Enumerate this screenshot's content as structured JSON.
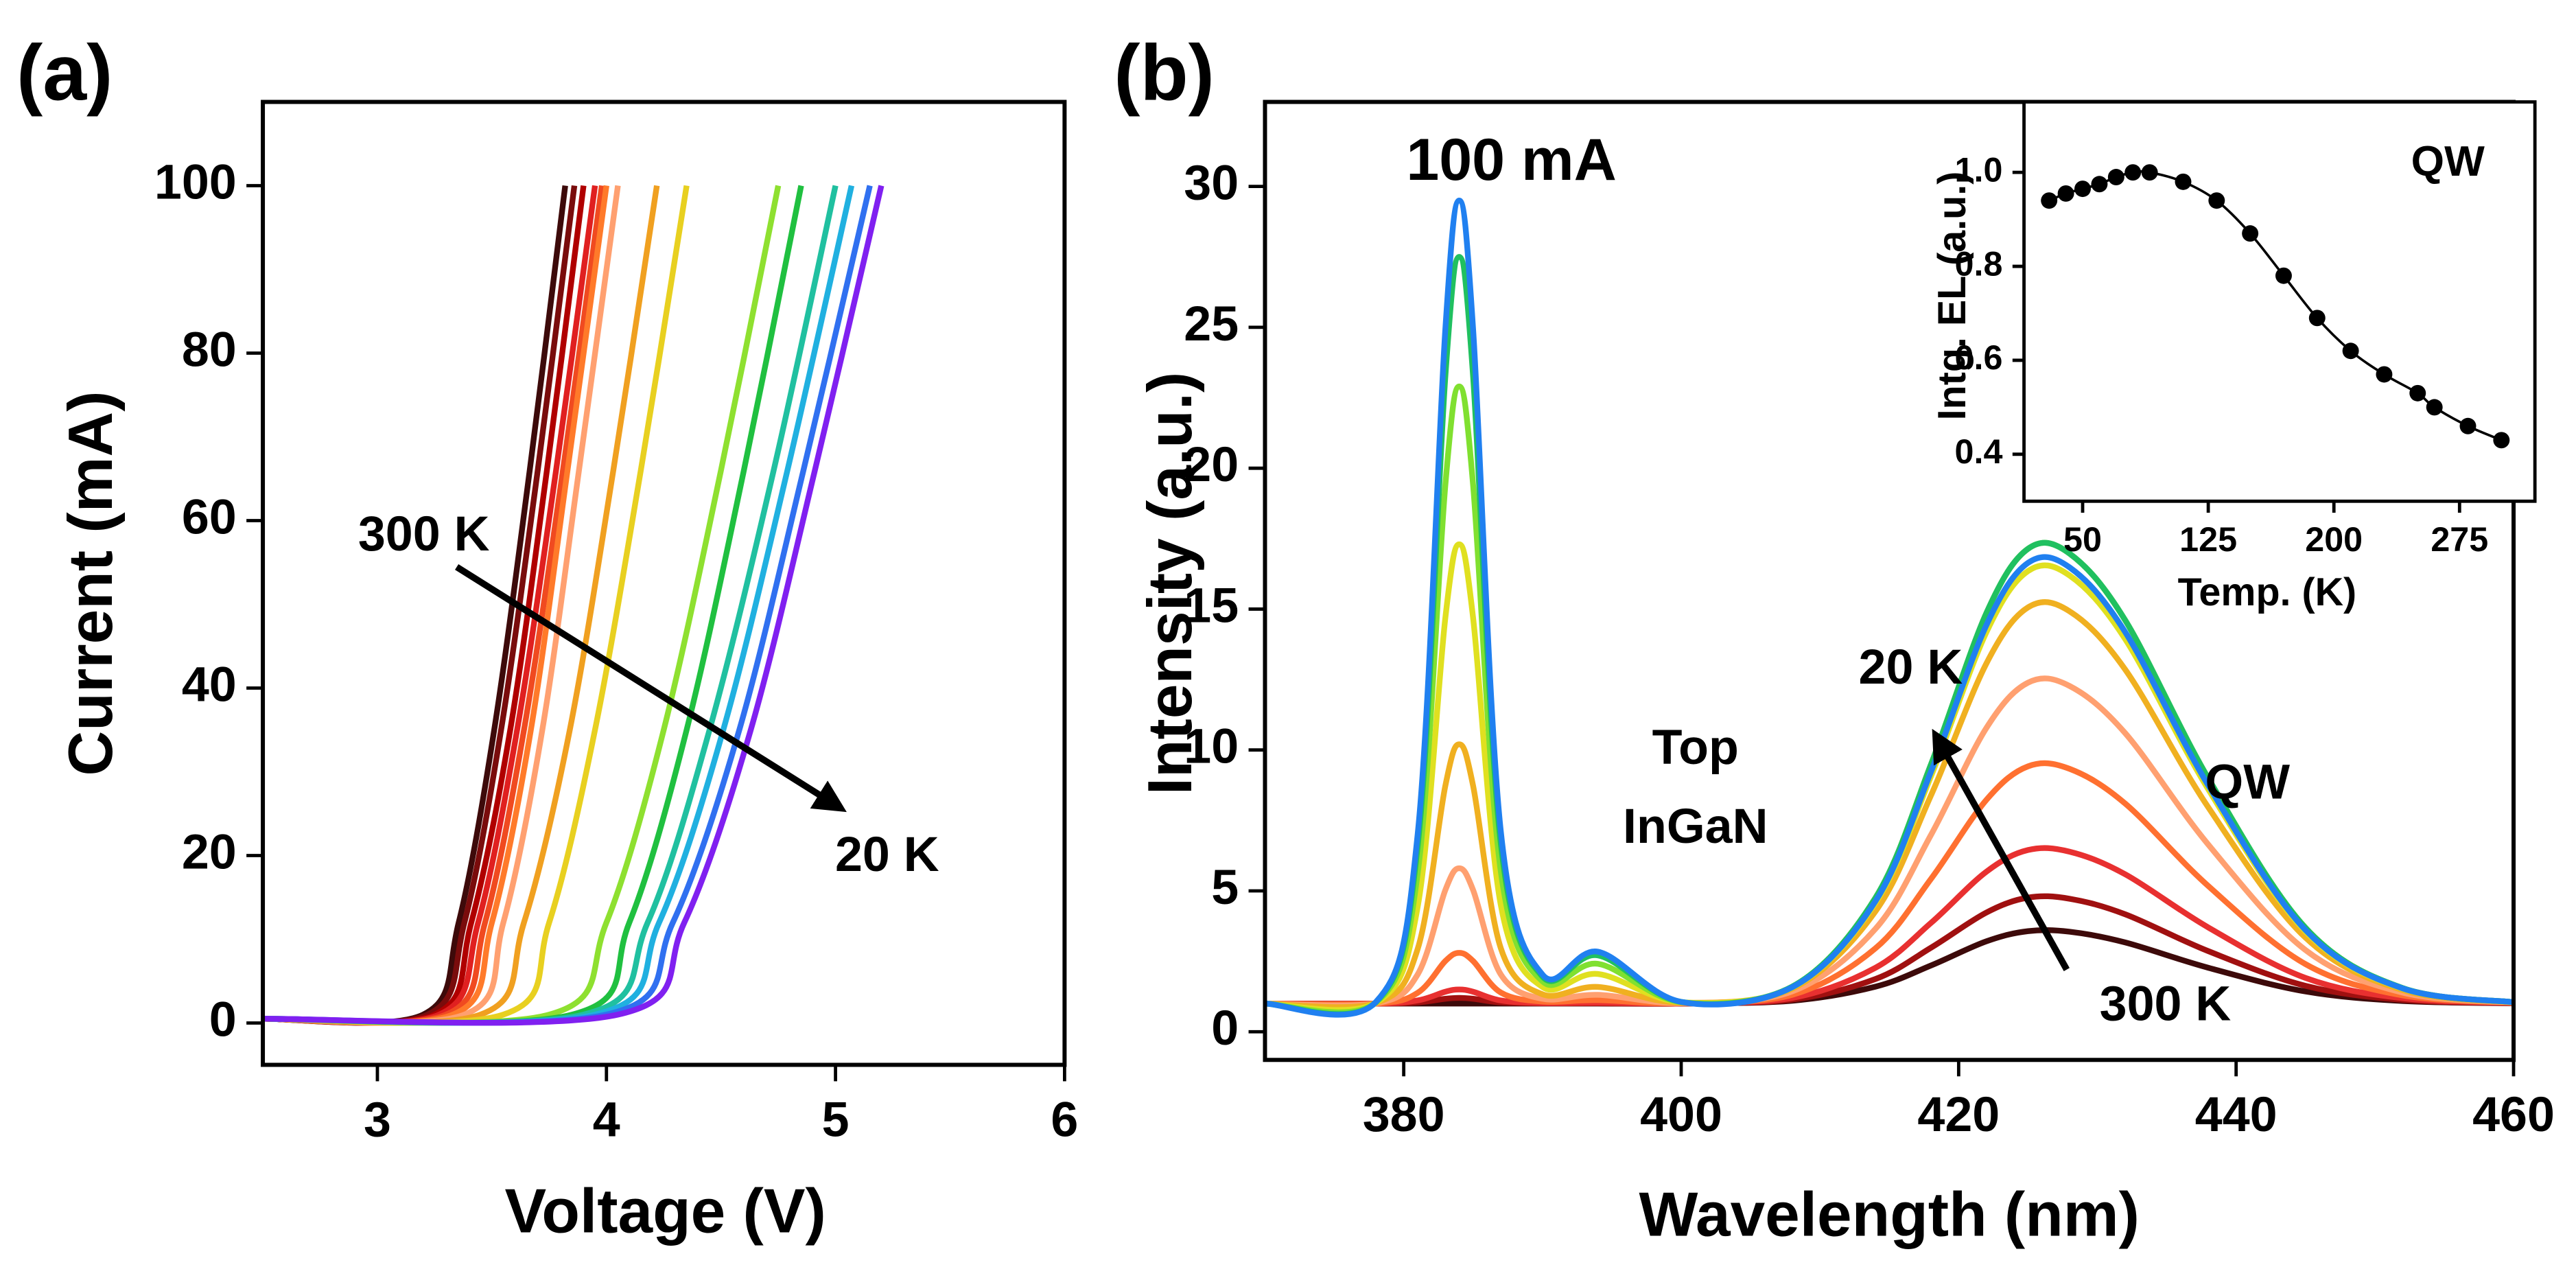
{
  "chart_data": [
    {
      "type": "line",
      "panel": "(a)",
      "x_label": "Voltage (V)",
      "y_label": "Current (mA)",
      "xlim": [
        2.5,
        6
      ],
      "xticks": [
        3,
        4,
        5,
        6
      ],
      "ylim": [
        -5,
        110
      ],
      "yticks": [
        0,
        20,
        40,
        60,
        80,
        100
      ],
      "annotations": [
        "300 K",
        "20 K"
      ],
      "series": [
        {
          "color": "#3d0a0a",
          "x": [
            2.5,
            3.2,
            3.355,
            3.51,
            3.665,
            3.82
          ],
          "values": [
            0.5,
            1,
            12,
            35,
            66,
            100
          ]
        },
        {
          "color": "#7a0c0c",
          "x": [
            2.5,
            3.22,
            3.38,
            3.54,
            3.7,
            3.86
          ],
          "values": [
            0.5,
            1,
            12,
            35,
            66,
            100
          ]
        },
        {
          "color": "#b00000",
          "x": [
            2.5,
            3.25,
            3.41,
            3.58,
            3.74,
            3.9
          ],
          "values": [
            0.5,
            1,
            12,
            35,
            66,
            100
          ]
        },
        {
          "color": "#e02020",
          "x": [
            2.5,
            3.27,
            3.44,
            3.61,
            3.78,
            3.95
          ],
          "values": [
            0.5,
            1,
            12,
            35,
            66,
            100
          ]
        },
        {
          "color": "#f04a20",
          "x": [
            2.5,
            3.3,
            3.47,
            3.64,
            3.81,
            3.98
          ],
          "values": [
            0.5,
            1,
            12,
            35,
            66,
            100
          ]
        },
        {
          "color": "#ff7a2a",
          "x": [
            2.5,
            3.33,
            3.5,
            3.67,
            3.83,
            4.0
          ],
          "values": [
            0.5,
            1,
            12,
            35,
            66,
            100
          ]
        },
        {
          "color": "#ffa070",
          "x": [
            2.5,
            3.38,
            3.55,
            3.72,
            3.88,
            4.05
          ],
          "values": [
            0.5,
            1,
            12,
            35,
            66,
            100
          ]
        },
        {
          "color": "#f0a020",
          "x": [
            2.5,
            3.45,
            3.64,
            3.84,
            4.03,
            4.22
          ],
          "values": [
            0.5,
            1,
            12,
            35,
            66,
            100
          ]
        },
        {
          "color": "#e8d020",
          "x": [
            2.5,
            3.55,
            3.75,
            3.95,
            4.15,
            4.35
          ],
          "values": [
            0.5,
            1,
            12,
            35,
            66,
            100
          ]
        },
        {
          "color": "#8ee030",
          "x": [
            2.5,
            3.75,
            4.0,
            4.25,
            4.5,
            4.75
          ],
          "values": [
            0.5,
            1,
            12,
            35,
            66,
            100
          ]
        },
        {
          "color": "#20c040",
          "x": [
            2.5,
            3.85,
            4.1,
            4.35,
            4.6,
            4.85
          ],
          "values": [
            0.5,
            1,
            12,
            35,
            66,
            100
          ]
        },
        {
          "color": "#20c0a0",
          "x": [
            2.5,
            3.9,
            4.18,
            4.45,
            4.73,
            5.0
          ],
          "values": [
            0.5,
            1,
            12,
            35,
            66,
            100
          ]
        },
        {
          "color": "#20b0e0",
          "x": [
            2.5,
            3.95,
            4.23,
            4.51,
            4.79,
            5.07
          ],
          "values": [
            0.5,
            1,
            12,
            35,
            66,
            100
          ]
        },
        {
          "color": "#3070f0",
          "x": [
            2.5,
            4.0,
            4.29,
            4.58,
            4.86,
            5.15
          ],
          "values": [
            0.5,
            1,
            12,
            35,
            66,
            100
          ]
        },
        {
          "color": "#8020f0",
          "x": [
            2.5,
            4.05,
            4.34,
            4.63,
            4.91,
            5.2
          ],
          "values": [
            0.5,
            1,
            12,
            35,
            66,
            100
          ]
        }
      ]
    },
    {
      "type": "line",
      "panel": "(b)",
      "x_label": "Wavelength (nm)",
      "y_label": "Intensity (a.u.)",
      "xlim": [
        370,
        460
      ],
      "xticks": [
        380,
        400,
        420,
        440,
        460
      ],
      "ylim": [
        -1,
        33
      ],
      "yticks": [
        0,
        5,
        10,
        15,
        20,
        25,
        30
      ],
      "annotations": [
        "100 mA",
        "Top",
        "InGaN",
        "QW",
        "20 K",
        "300 K"
      ],
      "x": [
        370,
        378,
        381,
        383,
        384,
        385,
        387,
        390,
        394,
        400,
        408,
        414,
        418,
        422,
        425,
        428,
        432,
        438,
        445,
        452,
        460
      ],
      "series": [
        {
          "color": "#3d0a0a",
          "values": [
            1,
            1,
            1,
            1,
            1,
            1,
            1,
            1,
            1,
            1,
            1.1,
            1.6,
            2.35,
            3.21,
            3.57,
            3.55,
            3.17,
            2.27,
            1.43,
            1.09,
            1.01
          ]
        },
        {
          "color": "#a01010",
          "values": [
            1,
            1,
            1.04,
            1.17,
            1.2,
            1.17,
            1.04,
            1.01,
            1.01,
            1,
            1.14,
            1.87,
            2.98,
            4.23,
            4.76,
            4.72,
            4.17,
            2.86,
            1.63,
            1.13,
            1.01
          ]
        },
        {
          "color": "#e83030",
          "values": [
            1,
            1,
            1.11,
            1.42,
            1.5,
            1.42,
            1.11,
            1.02,
            1.03,
            1.01,
            1.2,
            2.27,
            3.86,
            5.68,
            6.45,
            6.39,
            5.59,
            3.7,
            1.91,
            1.19,
            1.02
          ]
        },
        {
          "color": "#ff7030",
          "values": [
            1,
            1,
            1.38,
            2.51,
            2.8,
            2.51,
            1.39,
            1.07,
            1.12,
            1.01,
            1.31,
            2.96,
            5.42,
            8.23,
            9.42,
            9.33,
            8.1,
            5.17,
            2.4,
            1.29,
            1.03
          ]
        },
        {
          "color": "#ffa070",
          "values": [
            1,
            1.01,
            2.03,
            5.03,
            5.8,
            5.03,
            2.03,
            1.17,
            1.31,
            1.02,
            1.43,
            3.65,
            6.98,
            10.78,
            12.39,
            12.27,
            10.6,
            6.64,
            2.9,
            1.39,
            1.03
          ]
        },
        {
          "color": "#f0b020",
          "values": [
            1,
            1.02,
            2.93,
            8.73,
            10.2,
            8.73,
            2.96,
            1.33,
            1.59,
            1.03,
            1.53,
            4.27,
            8.38,
            13.07,
            15.06,
            14.92,
            12.86,
            7.96,
            3.34,
            1.48,
            1.04
          ]
        },
        {
          "color": "#e0e020",
          "values": [
            1,
            1.03,
            4.42,
            14.69,
            17.3,
            14.69,
            4.49,
            1.59,
            2.05,
            1.05,
            1.57,
            4.57,
            9.06,
            14.18,
            16.35,
            16.19,
            13.94,
            8.6,
            3.56,
            1.53,
            1.05
          ]
        },
        {
          "color": "#80e030",
          "values": [
            1,
            1.04,
            5.6,
            19.4,
            22.9,
            19.4,
            5.68,
            1.79,
            2.41,
            1.05,
            1.6,
            4.75,
            9.48,
            14.86,
            17.14,
            16.97,
            14.61,
            8.99,
            3.69,
            1.55,
            1.05
          ]
        },
        {
          "color": "#20c060",
          "values": [
            1,
            1.05,
            6.57,
            23.26,
            27.5,
            23.26,
            6.67,
            1.96,
            2.71,
            1.06,
            1.6,
            4.75,
            9.48,
            14.86,
            17.14,
            16.97,
            14.61,
            8.99,
            3.69,
            1.55,
            1.05
          ]
        },
        {
          "color": "#2080f0",
          "values": [
            1,
            1.06,
            6.99,
            24.94,
            29.5,
            24.94,
            7.1,
            2.03,
            2.84,
            1.06,
            1.58,
            4.63,
            9.22,
            14.43,
            16.64,
            16.48,
            14.19,
            8.74,
            3.61,
            1.54,
            1.05
          ]
        }
      ]
    },
    {
      "type": "line",
      "markers": true,
      "x_label": "Temp. (K)",
      "y_label": "Intg. EL (a.u.)",
      "xlim": [
        15,
        320
      ],
      "xticks": [
        50,
        125,
        200,
        275
      ],
      "ylim": [
        0.3,
        1.15
      ],
      "yticks": [
        0.4,
        0.6,
        0.8,
        {
          "value": 1,
          "label": "1.0"
        }
      ],
      "annotations": [
        "QW"
      ],
      "series": [
        {
          "color": "#000000",
          "x": [
            30,
            40,
            50,
            60,
            70,
            80,
            90,
            110,
            130,
            150,
            170,
            190,
            210,
            230,
            250,
            260,
            280,
            300
          ],
          "values": [
            0.94,
            0.955,
            0.965,
            0.975,
            0.99,
            1.0,
            1.0,
            0.98,
            0.94,
            0.87,
            0.78,
            0.69,
            0.62,
            0.57,
            0.53,
            0.5,
            0.46,
            0.43
          ]
        }
      ]
    }
  ]
}
